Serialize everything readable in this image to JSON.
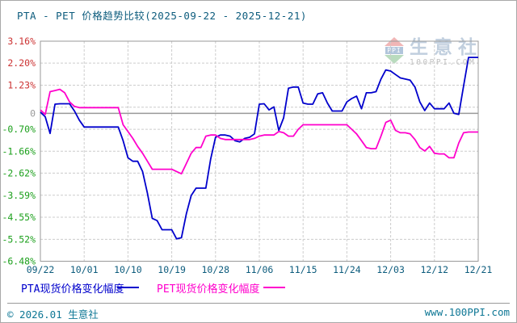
{
  "chart_data": {
    "type": "line",
    "title": "PTA - PET 价格趋势比较(2025-09-22 - 2025-12-21)",
    "date_range": [
      "2025-09-22",
      "2025-12-21"
    ],
    "days_total": 90,
    "x_tick_labels": [
      "09/22",
      "10/01",
      "10/10",
      "10/19",
      "10/28",
      "11/06",
      "11/15",
      "11/24",
      "12/03",
      "12/12",
      "12/21"
    ],
    "x_tick_days": [
      0,
      9,
      18,
      27,
      36,
      45,
      54,
      63,
      72,
      81,
      90
    ],
    "y_axis": {
      "max": 3.16,
      "min": -6.48,
      "ticks": [
        {
          "value": 3.16,
          "label": "3.16%"
        },
        {
          "value": 2.2,
          "label": "2.20%"
        },
        {
          "value": 1.23,
          "label": "1.23%"
        },
        {
          "value": 0.27,
          "label": ""
        },
        {
          "value": 0,
          "label": "0",
          "zero": true
        },
        {
          "value": -0.7,
          "label": "-0.70%"
        },
        {
          "value": -1.66,
          "label": "-1.66%"
        },
        {
          "value": -2.62,
          "label": "-2.62%"
        },
        {
          "value": -3.59,
          "label": "-3.59%"
        },
        {
          "value": -4.55,
          "label": "-4.55%"
        },
        {
          "value": -5.52,
          "label": "-5.52%"
        },
        {
          "value": -6.48,
          "label": "-6.48%"
        }
      ]
    },
    "grid": true,
    "legend_position": "bottom",
    "colors": {
      "title": "#0d5c7d",
      "axis_date": "#0d5c7d",
      "positive_tick": "#cc3333",
      "negative_tick": "#1ca01c",
      "zero_tick": "#999999",
      "grid": "#cccccc",
      "frame": "#999999",
      "zero_line": "#999999"
    },
    "series": [
      {
        "name": "PTA现货价格变化幅度",
        "color": "#0000cc",
        "values": [
          0.05,
          -0.15,
          -0.88,
          0.4,
          0.42,
          0.42,
          0.42,
          0.1,
          -0.3,
          -0.6,
          -0.6,
          -0.6,
          -0.6,
          -0.6,
          -0.6,
          -0.6,
          -0.6,
          -1.2,
          -1.95,
          -2.1,
          -2.1,
          -2.55,
          -3.5,
          -4.6,
          -4.7,
          -5.1,
          -5.1,
          -5.1,
          -5.5,
          -5.45,
          -4.4,
          -3.6,
          -3.28,
          -3.28,
          -3.28,
          -2.0,
          -1.05,
          -0.95,
          -0.95,
          -1.0,
          -1.2,
          -1.25,
          -1.1,
          -1.05,
          -0.9,
          0.4,
          0.42,
          0.15,
          0.28,
          -0.75,
          -0.2,
          1.1,
          1.15,
          1.15,
          0.45,
          0.4,
          0.4,
          0.85,
          0.9,
          0.45,
          0.1,
          0.1,
          0.1,
          0.5,
          0.65,
          0.75,
          0.2,
          0.9,
          0.9,
          0.95,
          1.5,
          1.9,
          1.85,
          1.7,
          1.55,
          1.5,
          1.45,
          1.15,
          0.5,
          0.12,
          0.45,
          0.2,
          0.2,
          0.2,
          0.45,
          0.0,
          -0.05,
          1.2,
          2.45,
          2.45,
          2.45
        ]
      },
      {
        "name": "PET现货价格变化幅度",
        "color": "#ff00cc",
        "values": [
          0.15,
          -0.05,
          0.95,
          1.0,
          1.05,
          0.9,
          0.5,
          0.3,
          0.25,
          0.25,
          0.25,
          0.25,
          0.25,
          0.25,
          0.25,
          0.25,
          0.25,
          -0.5,
          -0.8,
          -1.1,
          -1.45,
          -1.75,
          -2.1,
          -2.45,
          -2.45,
          -2.45,
          -2.45,
          -2.45,
          -2.55,
          -2.65,
          -2.2,
          -1.75,
          -1.5,
          -1.5,
          -1.0,
          -0.95,
          -0.95,
          -1.1,
          -1.15,
          -1.15,
          -1.15,
          -1.15,
          -1.15,
          -1.15,
          -1.1,
          -1.0,
          -0.95,
          -0.95,
          -0.95,
          -0.8,
          -0.85,
          -1.0,
          -1.0,
          -0.7,
          -0.5,
          -0.5,
          -0.5,
          -0.5,
          -0.5,
          -0.5,
          -0.5,
          -0.5,
          -0.5,
          -0.5,
          -0.7,
          -0.9,
          -1.2,
          -1.5,
          -1.55,
          -1.55,
          -1.0,
          -0.4,
          -0.3,
          -0.75,
          -0.85,
          -0.85,
          -0.9,
          -1.15,
          -1.5,
          -1.65,
          -1.45,
          -1.75,
          -1.78,
          -1.78,
          -1.95,
          -1.95,
          -1.3,
          -0.85,
          -0.82,
          -0.82,
          -0.82
        ]
      }
    ]
  },
  "watermark": {
    "icon_text": "PPI",
    "name": "生意社",
    "url": "100PPI.COM"
  },
  "footer": {
    "copyright": "© 2026.01 生意社",
    "url": "www.100PPI.com"
  }
}
